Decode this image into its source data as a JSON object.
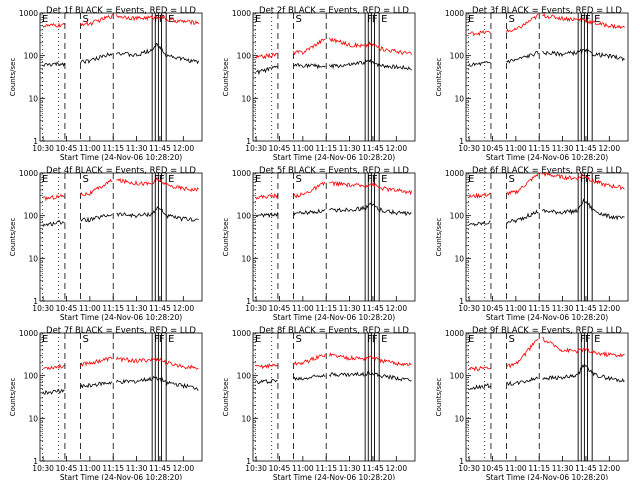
{
  "chart_data": [
    {
      "type": "line",
      "title": "Det 1f BLACK = Events, RED = LLD",
      "xlabel": "Start Time (24-Nov-06 10:28:20)",
      "ylabel": "Counts/sec",
      "yscale": "log",
      "ylim": [
        1,
        1000
      ],
      "xlim": [
        "10:30",
        "12:10"
      ],
      "series": [
        {
          "color": "#000000",
          "values": [
            [
              0,
              60
            ],
            [
              15,
              65
            ],
            [
              25,
              75
            ],
            [
              30,
              75
            ],
            [
              45,
              120
            ],
            [
              60,
              100
            ],
            [
              70,
              140
            ],
            [
              73,
              180
            ],
            [
              76,
              150
            ],
            [
              79,
              105
            ],
            [
              88,
              85
            ],
            [
              100,
              70
            ]
          ]
        },
        {
          "color": "#ff0000",
          "values": [
            [
              0,
              500
            ],
            [
              15,
              520
            ],
            [
              25,
              560
            ],
            [
              30,
              560
            ],
            [
              45,
              880
            ],
            [
              60,
              750
            ],
            [
              70,
              780
            ],
            [
              73,
              820
            ],
            [
              76,
              840
            ],
            [
              79,
              700
            ],
            [
              88,
              640
            ],
            [
              100,
              600
            ]
          ]
        }
      ]
    },
    {
      "type": "line",
      "title": "Det 2f BLACK = Events, RED = LLD",
      "xlabel": "Start Time (24-Nov-06 10:28:20)",
      "ylabel": "Counts/sec",
      "yscale": "log",
      "ylim": [
        1,
        1000
      ],
      "xlim": [
        "10:30",
        "12:10"
      ],
      "series": [
        {
          "color": "#000000",
          "values": [
            [
              0,
              40
            ],
            [
              15,
              55
            ],
            [
              25,
              60
            ],
            [
              30,
              60
            ],
            [
              45,
              55
            ],
            [
              60,
              60
            ],
            [
              70,
              70
            ],
            [
              73,
              75
            ],
            [
              76,
              70
            ],
            [
              79,
              60
            ],
            [
              88,
              55
            ],
            [
              100,
              50
            ]
          ]
        },
        {
          "color": "#ff0000",
          "values": [
            [
              0,
              90
            ],
            [
              15,
              110
            ],
            [
              25,
              120
            ],
            [
              30,
              120
            ],
            [
              45,
              260
            ],
            [
              60,
              180
            ],
            [
              70,
              170
            ],
            [
              73,
              190
            ],
            [
              76,
              180
            ],
            [
              79,
              150
            ],
            [
              88,
              130
            ],
            [
              100,
              110
            ]
          ]
        }
      ]
    },
    {
      "type": "line",
      "title": "Det 3f BLACK = Events, RED = LLD",
      "xlabel": "Start Time (24-Nov-06 10:28:20)",
      "ylabel": "Counts/sec",
      "yscale": "log",
      "ylim": [
        1,
        1000
      ],
      "xlim": [
        "10:30",
        "12:10"
      ],
      "series": [
        {
          "color": "#000000",
          "values": [
            [
              0,
              60
            ],
            [
              15,
              70
            ],
            [
              25,
              75
            ],
            [
              30,
              80
            ],
            [
              45,
              120
            ],
            [
              60,
              110
            ],
            [
              70,
              120
            ],
            [
              73,
              130
            ],
            [
              76,
              125
            ],
            [
              79,
              110
            ],
            [
              88,
              100
            ],
            [
              100,
              85
            ]
          ]
        },
        {
          "color": "#ff0000",
          "values": [
            [
              0,
              330
            ],
            [
              15,
              360
            ],
            [
              25,
              380
            ],
            [
              30,
              400
            ],
            [
              45,
              900
            ],
            [
              60,
              750
            ],
            [
              70,
              700
            ],
            [
              73,
              720
            ],
            [
              76,
              650
            ],
            [
              79,
              600
            ],
            [
              88,
              520
            ],
            [
              100,
              450
            ]
          ]
        }
      ]
    },
    {
      "type": "line",
      "title": "Det 4f BLACK = Events, RED = LLD",
      "xlabel": "Start Time (24-Nov-06 10:28:20)",
      "ylabel": "Counts/sec",
      "yscale": "log",
      "ylim": [
        1,
        1000
      ],
      "xlim": [
        "10:30",
        "12:10"
      ],
      "series": [
        {
          "color": "#000000",
          "values": [
            [
              0,
              60
            ],
            [
              15,
              75
            ],
            [
              25,
              80
            ],
            [
              30,
              80
            ],
            [
              45,
              110
            ],
            [
              60,
              100
            ],
            [
              70,
              110
            ],
            [
              73,
              150
            ],
            [
              76,
              140
            ],
            [
              79,
              100
            ],
            [
              88,
              85
            ],
            [
              100,
              80
            ]
          ]
        },
        {
          "color": "#ff0000",
          "values": [
            [
              0,
              250
            ],
            [
              15,
              300
            ],
            [
              25,
              320
            ],
            [
              30,
              330
            ],
            [
              45,
              700
            ],
            [
              60,
              580
            ],
            [
              70,
              560
            ],
            [
              73,
              700
            ],
            [
              76,
              650
            ],
            [
              79,
              520
            ],
            [
              88,
              450
            ],
            [
              100,
              400
            ]
          ]
        }
      ]
    },
    {
      "type": "line",
      "title": "Det 5f BLACK = Events, RED = LLD",
      "xlabel": "Start Time (24-Nov-06 10:28:20)",
      "ylabel": "Counts/sec",
      "yscale": "log",
      "ylim": [
        1,
        1000
      ],
      "xlim": [
        "10:30",
        "12:10"
      ],
      "series": [
        {
          "color": "#000000",
          "values": [
            [
              0,
              100
            ],
            [
              15,
              110
            ],
            [
              25,
              115
            ],
            [
              30,
              115
            ],
            [
              45,
              130
            ],
            [
              60,
              140
            ],
            [
              70,
              150
            ],
            [
              73,
              180
            ],
            [
              76,
              170
            ],
            [
              79,
              140
            ],
            [
              88,
              120
            ],
            [
              100,
              110
            ]
          ]
        },
        {
          "color": "#ff0000",
          "values": [
            [
              0,
              270
            ],
            [
              15,
              300
            ],
            [
              25,
              300
            ],
            [
              30,
              310
            ],
            [
              45,
              600
            ],
            [
              60,
              520
            ],
            [
              70,
              500
            ],
            [
              73,
              560
            ],
            [
              76,
              530
            ],
            [
              79,
              450
            ],
            [
              88,
              400
            ],
            [
              100,
              350
            ]
          ]
        }
      ]
    },
    {
      "type": "line",
      "title": "Det 6f BLACK = Events, RED = LLD",
      "xlabel": "Start Time (24-Nov-06 10:28:20)",
      "ylabel": "Counts/sec",
      "yscale": "log",
      "ylim": [
        1,
        1000
      ],
      "xlim": [
        "10:30",
        "12:10"
      ],
      "series": [
        {
          "color": "#000000",
          "values": [
            [
              0,
              60
            ],
            [
              15,
              70
            ],
            [
              25,
              75
            ],
            [
              30,
              75
            ],
            [
              45,
              130
            ],
            [
              60,
              120
            ],
            [
              70,
              130
            ],
            [
              73,
              220
            ],
            [
              76,
              200
            ],
            [
              79,
              140
            ],
            [
              88,
              100
            ],
            [
              100,
              85
            ]
          ]
        },
        {
          "color": "#ff0000",
          "values": [
            [
              0,
              280
            ],
            [
              15,
              320
            ],
            [
              25,
              340
            ],
            [
              30,
              350
            ],
            [
              45,
              1000
            ],
            [
              60,
              800
            ],
            [
              70,
              750
            ],
            [
              73,
              900
            ],
            [
              76,
              800
            ],
            [
              79,
              650
            ],
            [
              88,
              520
            ],
            [
              100,
              450
            ]
          ]
        }
      ]
    },
    {
      "type": "line",
      "title": "Det 7f BLACK = Events, RED = LLD",
      "xlabel": "Start Time (24-Nov-06 10:28:20)",
      "ylabel": "Counts/sec",
      "yscale": "log",
      "ylim": [
        1,
        1000
      ],
      "xlim": [
        "10:30",
        "12:10"
      ],
      "series": [
        {
          "color": "#000000",
          "values": [
            [
              0,
              40
            ],
            [
              15,
              45
            ],
            [
              25,
              55
            ],
            [
              30,
              60
            ],
            [
              45,
              70
            ],
            [
              60,
              75
            ],
            [
              70,
              85
            ],
            [
              73,
              90
            ],
            [
              76,
              80
            ],
            [
              79,
              70
            ],
            [
              88,
              60
            ],
            [
              100,
              50
            ]
          ]
        },
        {
          "color": "#ff0000",
          "values": [
            [
              0,
              150
            ],
            [
              15,
              170
            ],
            [
              25,
              190
            ],
            [
              30,
              200
            ],
            [
              45,
              260
            ],
            [
              60,
              220
            ],
            [
              70,
              240
            ],
            [
              73,
              250
            ],
            [
              76,
              230
            ],
            [
              79,
              200
            ],
            [
              88,
              170
            ],
            [
              100,
              150
            ]
          ]
        }
      ]
    },
    {
      "type": "line",
      "title": "Det 8f BLACK = Events, RED = LLD",
      "xlabel": "Start Time (24-Nov-06 10:28:20)",
      "ylabel": "Counts/sec",
      "yscale": "log",
      "ylim": [
        1,
        1000
      ],
      "xlim": [
        "10:30",
        "12:10"
      ],
      "series": [
        {
          "color": "#000000",
          "values": [
            [
              0,
              70
            ],
            [
              15,
              80
            ],
            [
              25,
              85
            ],
            [
              30,
              85
            ],
            [
              45,
              110
            ],
            [
              60,
              105
            ],
            [
              70,
              110
            ],
            [
              73,
              120
            ],
            [
              76,
              110
            ],
            [
              79,
              100
            ],
            [
              88,
              90
            ],
            [
              100,
              80
            ]
          ]
        },
        {
          "color": "#ff0000",
          "values": [
            [
              0,
              160
            ],
            [
              15,
              180
            ],
            [
              25,
              190
            ],
            [
              30,
              200
            ],
            [
              45,
              320
            ],
            [
              60,
              260
            ],
            [
              70,
              250
            ],
            [
              73,
              280
            ],
            [
              76,
              260
            ],
            [
              79,
              230
            ],
            [
              88,
              200
            ],
            [
              100,
              180
            ]
          ]
        }
      ]
    },
    {
      "type": "line",
      "title": "Det 9f BLACK = Events, RED = LLD",
      "xlabel": "Start Time (24-Nov-06 10:28:20)",
      "ylabel": "Counts/sec",
      "yscale": "log",
      "ylim": [
        1,
        1000
      ],
      "xlim": [
        "10:30",
        "12:10"
      ],
      "series": [
        {
          "color": "#000000",
          "values": [
            [
              0,
              50
            ],
            [
              15,
              60
            ],
            [
              25,
              65
            ],
            [
              30,
              65
            ],
            [
              45,
              90
            ],
            [
              60,
              90
            ],
            [
              70,
              100
            ],
            [
              73,
              180
            ],
            [
              76,
              160
            ],
            [
              79,
              110
            ],
            [
              88,
              90
            ],
            [
              100,
              75
            ]
          ]
        },
        {
          "color": "#ff0000",
          "values": [
            [
              0,
              140
            ],
            [
              15,
              160
            ],
            [
              25,
              170
            ],
            [
              30,
              180
            ],
            [
              45,
              800
            ],
            [
              60,
              400
            ],
            [
              70,
              380
            ],
            [
              73,
              420
            ],
            [
              76,
              400
            ],
            [
              79,
              350
            ],
            [
              88,
              320
            ],
            [
              100,
              300
            ]
          ]
        }
      ]
    }
  ],
  "shared": {
    "xticks": [
      "10:30",
      "10:45",
      "11:00",
      "11:15",
      "11:30",
      "11:45",
      "12:00"
    ],
    "yticks": [
      "1",
      "10",
      "100",
      "1000"
    ],
    "markers": [
      {
        "label": "E",
        "min": -2
      },
      {
        "label": "S",
        "min": 24
      },
      {
        "label": "F",
        "min": 70
      },
      {
        "label": "F",
        "min": 73
      },
      {
        "label": "E",
        "min": 79
      }
    ]
  }
}
